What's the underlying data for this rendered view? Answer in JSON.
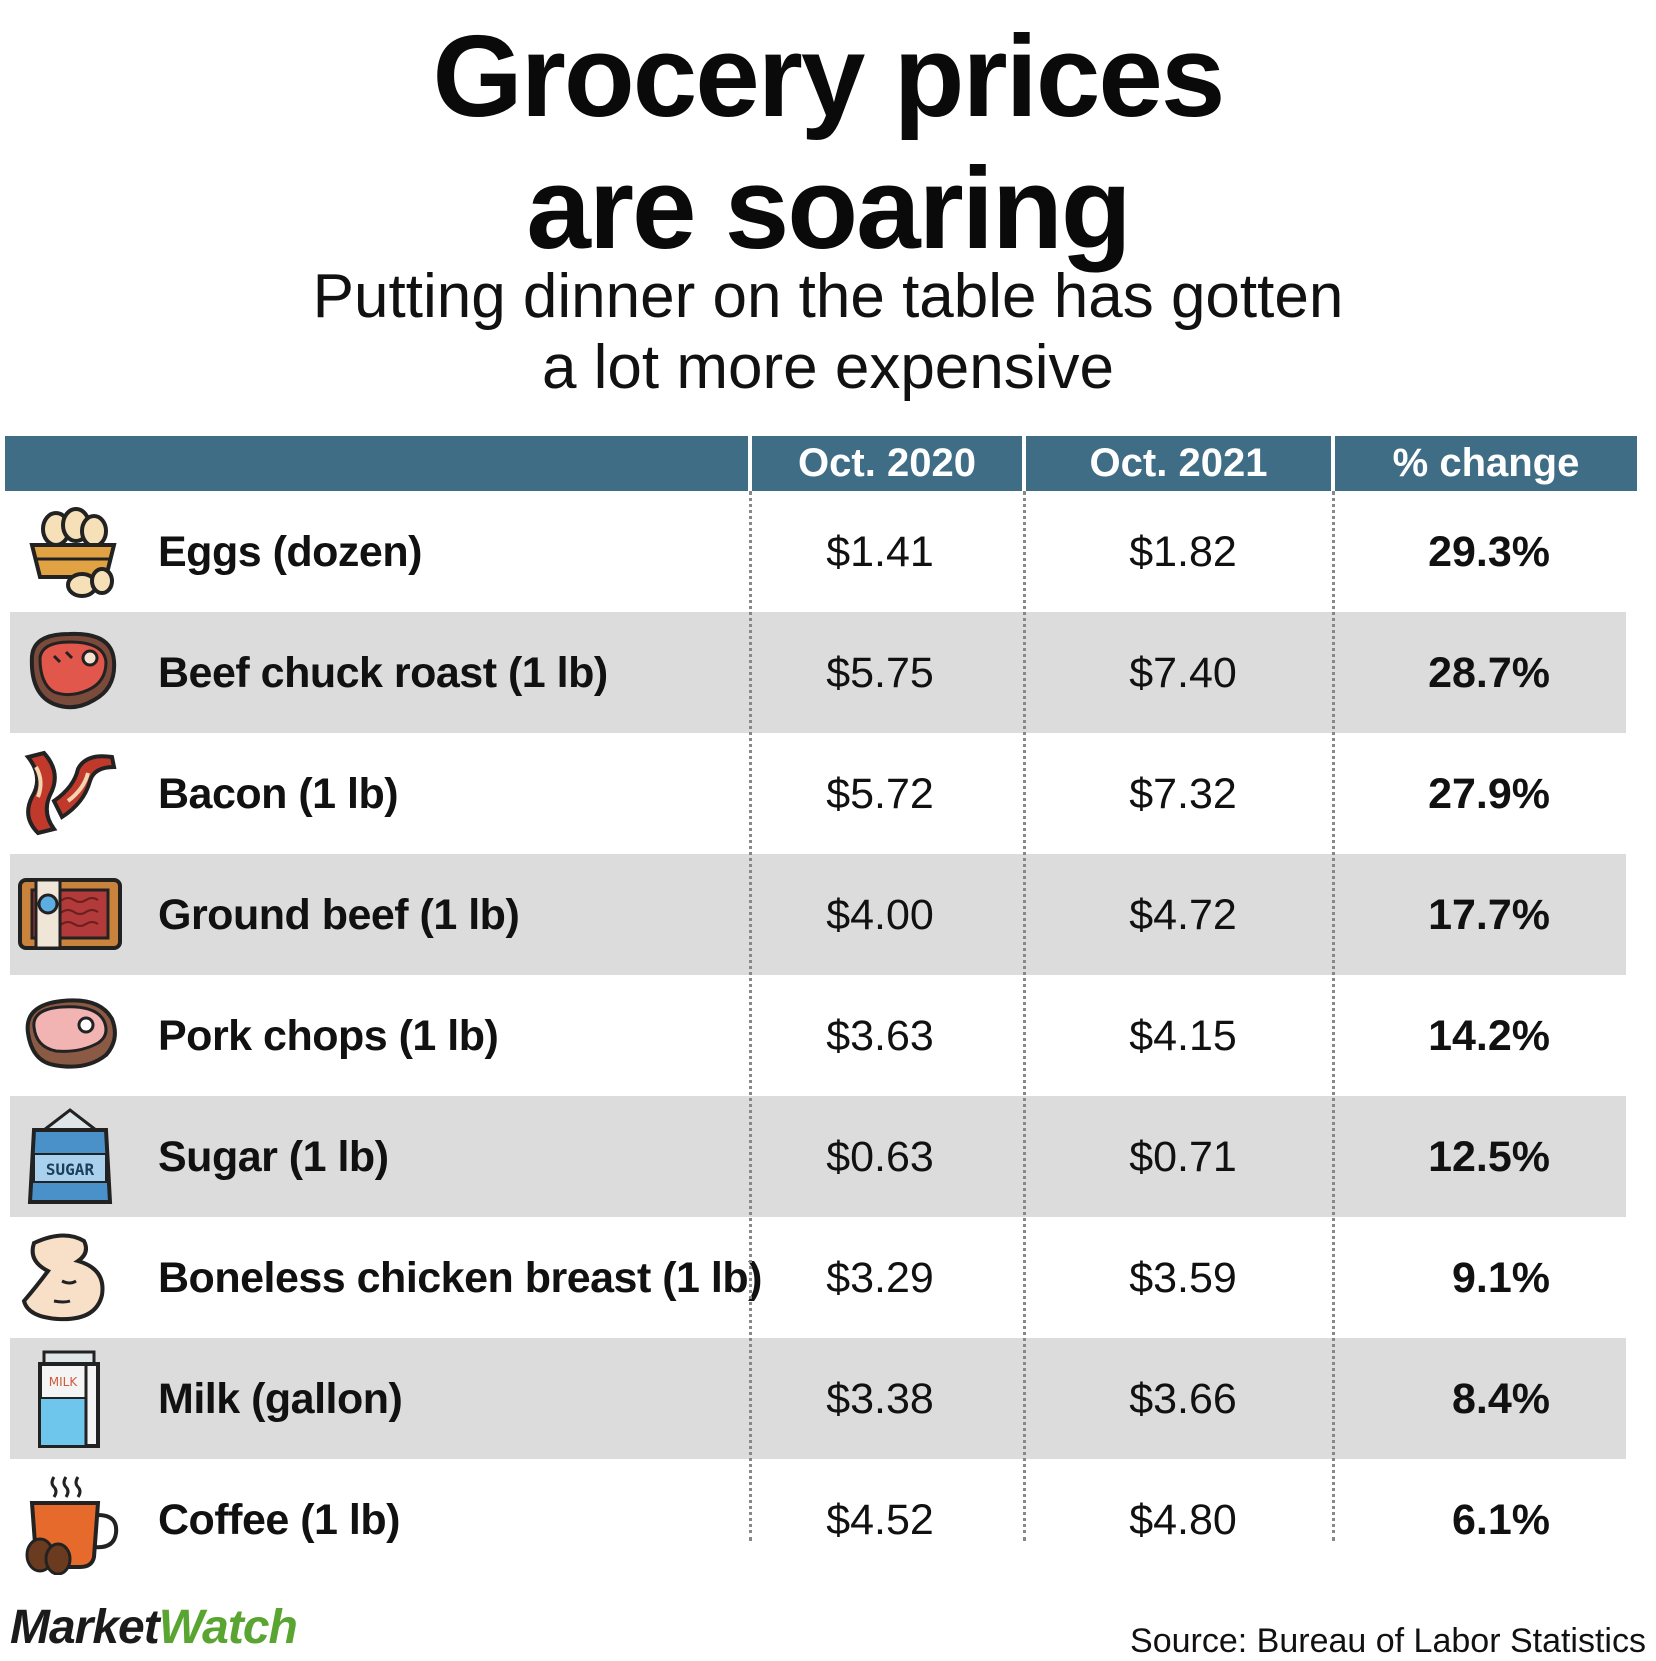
{
  "title_line1": "Grocery prices",
  "title_line2": "are soaring",
  "subtitle_line1": "Putting dinner on the table has gotten",
  "subtitle_line2": "a lot more expensive",
  "header_color": "#3f6d86",
  "stripe_color": "#dcdcdc",
  "chart_data": {
    "type": "table",
    "columns": [
      "",
      "Oct. 2020",
      "Oct. 2021",
      "% change"
    ],
    "rows": [
      {
        "item": "Eggs (dozen)",
        "icon": "eggs-basket-icon",
        "oct2020": "$1.41",
        "oct2021": "$1.82",
        "change": "29.3%"
      },
      {
        "item": "Beef chuck roast (1 lb)",
        "icon": "steak-icon",
        "oct2020": "$5.75",
        "oct2021": "$7.40",
        "change": "28.7%"
      },
      {
        "item": "Bacon (1 lb)",
        "icon": "bacon-icon",
        "oct2020": "$5.72",
        "oct2021": "$7.32",
        "change": "27.9%"
      },
      {
        "item": "Ground beef (1 lb)",
        "icon": "ground-beef-package-icon",
        "oct2020": "$4.00",
        "oct2021": "$4.72",
        "change": "17.7%"
      },
      {
        "item": "Pork chops (1 lb)",
        "icon": "pork-chop-icon",
        "oct2020": "$3.63",
        "oct2021": "$4.15",
        "change": "14.2%"
      },
      {
        "item": "Sugar (1 lb)",
        "icon": "sugar-bag-icon",
        "icon_text": "SUGAR",
        "oct2020": "$0.63",
        "oct2021": "$0.71",
        "change": "12.5%"
      },
      {
        "item": "Boneless chicken breast (1 lb)",
        "icon": "chicken-breast-icon",
        "oct2020": "$3.29",
        "oct2021": "$3.59",
        "change": "9.1%"
      },
      {
        "item": "Milk (gallon)",
        "icon": "milk-carton-icon",
        "icon_text": "MILK",
        "oct2020": "$3.38",
        "oct2021": "$3.66",
        "change": "8.4%"
      },
      {
        "item": "Coffee (1 lb)",
        "icon": "coffee-cup-icon",
        "oct2020": "$4.52",
        "oct2021": "$4.80",
        "change": "6.1%"
      }
    ]
  },
  "logo": {
    "part1": "Market",
    "part2": "Watch"
  },
  "source": "Source: Bureau of Labor Statistics"
}
